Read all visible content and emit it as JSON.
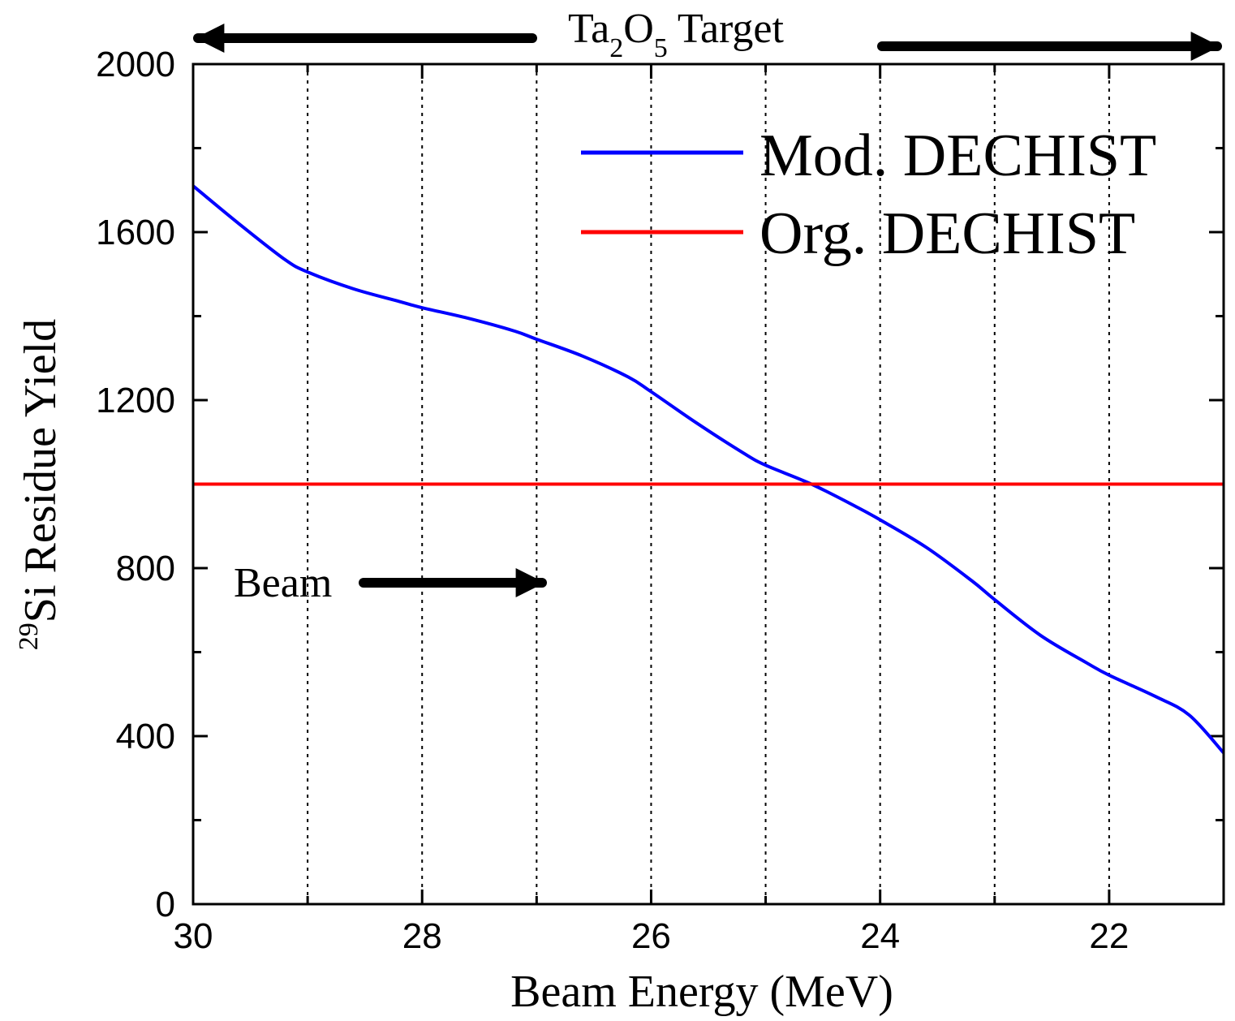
{
  "chart_data": {
    "type": "line",
    "title": "",
    "xlabel": "Beam Energy (MeV)",
    "ylabel": "Si Residue Yield",
    "ylabel_superscript": "29",
    "xlim": [
      30,
      21
    ],
    "ylim": [
      0,
      2000
    ],
    "x_reversed": true,
    "x_ticks": [
      30,
      28,
      26,
      24,
      22
    ],
    "x_tick_labels": [
      "30",
      "28",
      "26",
      "24",
      "22"
    ],
    "x_minor_ticks": [
      29,
      27,
      25,
      23,
      21
    ],
    "y_ticks": [
      0,
      400,
      800,
      1200,
      1600,
      2000
    ],
    "y_tick_labels": [
      "0",
      "400",
      "800",
      "1200",
      "1600",
      "2000"
    ],
    "y_minor_ticks": [
      200,
      600,
      1000,
      1400,
      1800
    ],
    "grid": "vertical dotted lines at x = 29, 28, 27, 26, 25, 24, 23, 22",
    "grid_x": [
      29,
      28,
      27,
      26,
      25,
      24,
      23,
      22
    ],
    "legend_position": "top-right",
    "series": [
      {
        "name": "Mod. DECHIST",
        "color": "#0000ff",
        "x": [
          30.0,
          29.6,
          29.2,
          29.0,
          28.6,
          28.2,
          28.0,
          27.6,
          27.2,
          27.0,
          26.6,
          26.2,
          26.0,
          25.6,
          25.2,
          25.0,
          24.6,
          24.2,
          24.0,
          23.6,
          23.2,
          23.0,
          22.6,
          22.2,
          22.0,
          21.6,
          21.3,
          21.0
        ],
        "y": [
          1710,
          1620,
          1535,
          1505,
          1465,
          1435,
          1420,
          1395,
          1365,
          1345,
          1305,
          1255,
          1220,
          1145,
          1075,
          1045,
          1000,
          945,
          915,
          850,
          770,
          725,
          640,
          575,
          545,
          495,
          450,
          360
        ]
      },
      {
        "name": "Org. DECHIST",
        "color": "#ff0000",
        "x": [
          30.0,
          21.0
        ],
        "y": [
          1000,
          1000
        ]
      }
    ],
    "annotations": [
      {
        "text": "Ta",
        "sub1": "2",
        "mid": "O",
        "sub2": "5",
        "tail": " Target",
        "role": "target-label"
      },
      {
        "text": "Beam",
        "role": "beam-label"
      }
    ]
  }
}
